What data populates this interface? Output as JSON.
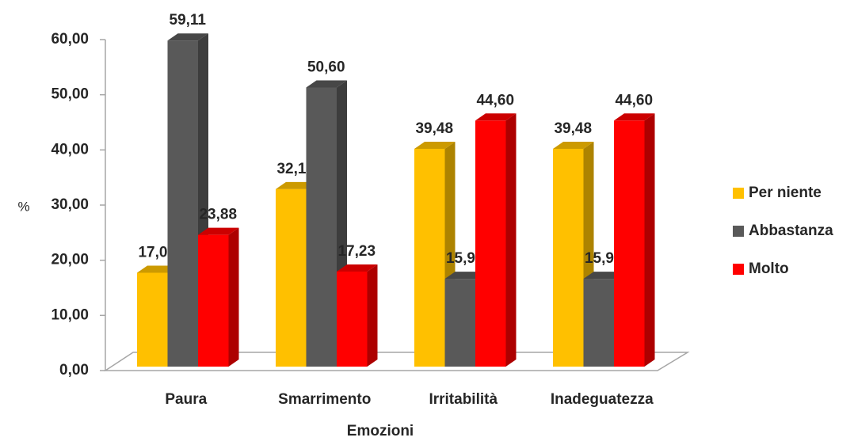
{
  "chart_data": {
    "type": "bar3d",
    "categories": [
      "Paura",
      "Smarrimento",
      "Irritabilità",
      "Inadeguatezza"
    ],
    "series": [
      {
        "name": "Per niente",
        "color": "#ffc000",
        "values": [
          17.01,
          32.17,
          39.48,
          39.48
        ],
        "value_labels": [
          "17,01",
          "32,17",
          "39,48",
          "39,48"
        ]
      },
      {
        "name": "Abbastanza",
        "color": "#595959",
        "values": [
          59.11,
          50.6,
          15.92,
          15.92
        ],
        "value_labels": [
          "59,11",
          "50,60",
          "15,92",
          "15,92"
        ]
      },
      {
        "name": "Molto",
        "color": "#ff0000",
        "values": [
          23.88,
          17.23,
          44.6,
          44.6
        ],
        "value_labels": [
          "23,88",
          "17,23",
          "44,60",
          "44,60"
        ]
      }
    ],
    "ylabel": "%",
    "xlabel": "Emozioni",
    "ylim": [
      0,
      60
    ],
    "yticks": [
      {
        "value": 0,
        "label": "0,00"
      },
      {
        "value": 10,
        "label": "10,00"
      },
      {
        "value": 20,
        "label": "20,00"
      },
      {
        "value": 30,
        "label": "30,00"
      },
      {
        "value": 40,
        "label": "40,00"
      },
      {
        "value": 50,
        "label": "50,00"
      },
      {
        "value": 60,
        "label": "60,00"
      }
    ],
    "legend": "right"
  }
}
